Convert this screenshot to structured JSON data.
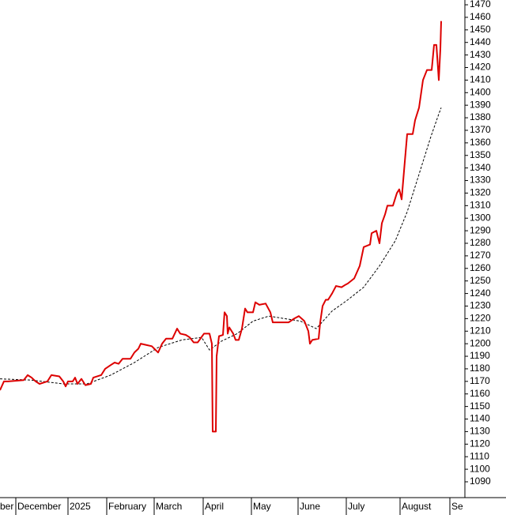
{
  "chart_data": {
    "type": "line",
    "xlim": [
      0,
      588
    ],
    "xticks": [
      {
        "value": -20,
        "label": "ber"
      },
      {
        "value": 20,
        "label": "December"
      },
      {
        "value": 86,
        "label": "2025"
      },
      {
        "value": 135,
        "label": "February"
      },
      {
        "value": 195,
        "label": "March"
      },
      {
        "value": 257,
        "label": "April"
      },
      {
        "value": 318,
        "label": "May"
      },
      {
        "value": 377,
        "label": "June"
      },
      {
        "value": 438,
        "label": "July"
      },
      {
        "value": 506,
        "label": "August"
      },
      {
        "value": 569,
        "label": "Se"
      }
    ],
    "ylim": [
      1077.4,
      1473.8
    ],
    "yticks": [
      1090,
      1100,
      1110,
      1120,
      1130,
      1140,
      1150,
      1160,
      1170,
      1180,
      1190,
      1200,
      1210,
      1220,
      1230,
      1240,
      1250,
      1260,
      1270,
      1280,
      1290,
      1300,
      1310,
      1320,
      1330,
      1340,
      1350,
      1360,
      1370,
      1380,
      1390,
      1400,
      1410,
      1420,
      1430,
      1440,
      1450,
      1460,
      1470
    ],
    "grid": false,
    "series": [
      {
        "color": "#dd0000",
        "style": "solid",
        "x": [
          0,
          5,
          10,
          30,
          35,
          40,
          45,
          50,
          60,
          65,
          75,
          80,
          83,
          86,
          92,
          95,
          98,
          103,
          108,
          115,
          118,
          128,
          133,
          140,
          145,
          150,
          155,
          165,
          170,
          175,
          178,
          185,
          192,
          200,
          205,
          210,
          218,
          224,
          228,
          235,
          240,
          245,
          250,
          258,
          265,
          268,
          269,
          273,
          274,
          277,
          282,
          284,
          287,
          288,
          290,
          295,
          298,
          302,
          306,
          310,
          313,
          320,
          323,
          328,
          336,
          342,
          345,
          355,
          365,
          372,
          378,
          385,
          390,
          392,
          395,
          403,
          405,
          408,
          412,
          415,
          420,
          425,
          432,
          437,
          440,
          448,
          455,
          460,
          468,
          470,
          476,
          480,
          483,
          487,
          490,
          497,
          502,
          505,
          508,
          512,
          515,
          522,
          525,
          530,
          535,
          540,
          546,
          549,
          552,
          555,
          557,
          558
        ],
        "values": [
          1163,
          1170,
          1170,
          1171,
          1175,
          1173,
          1170,
          1168,
          1170,
          1175,
          1174,
          1170,
          1166,
          1170,
          1170,
          1173,
          1168,
          1172,
          1167,
          1168,
          1173,
          1175,
          1180,
          1183,
          1185,
          1184,
          1188,
          1188,
          1193,
          1196,
          1200,
          1199,
          1198,
          1193,
          1200,
          1204,
          1204,
          1212,
          1208,
          1207,
          1205,
          1201,
          1201,
          1208,
          1208,
          1200,
          1130,
          1130,
          1190,
          1206,
          1207,
          1225,
          1222,
          1208,
          1213,
          1208,
          1203,
          1203,
          1212,
          1228,
          1225,
          1225,
          1233,
          1231,
          1232,
          1225,
          1217,
          1217,
          1217,
          1220,
          1222,
          1218,
          1210,
          1200,
          1203,
          1204,
          1217,
          1230,
          1235,
          1235,
          1240,
          1246,
          1245,
          1247,
          1248,
          1252,
          1262,
          1277,
          1279,
          1288,
          1290,
          1280,
          1296,
          1303,
          1310,
          1310,
          1320,
          1323,
          1315,
          1345,
          1367,
          1367,
          1378,
          1388,
          1410,
          1418,
          1418,
          1438,
          1438,
          1410,
          1435,
          1457
        ]
      },
      {
        "color": "#000000",
        "style": "dashed",
        "x": [
          0,
          40,
          80,
          110,
          140,
          170,
          200,
          230,
          255,
          265,
          280,
          300,
          320,
          340,
          360,
          380,
          400,
          420,
          440,
          460,
          480,
          500,
          515,
          530,
          545,
          555,
          558
        ],
        "values": [
          1172,
          1171,
          1168,
          1168,
          1175,
          1185,
          1197,
          1203,
          1205,
          1195,
          1202,
          1208,
          1218,
          1222,
          1220,
          1218,
          1212,
          1226,
          1235,
          1245,
          1262,
          1282,
          1305,
          1335,
          1365,
          1383,
          1388
        ]
      }
    ]
  }
}
